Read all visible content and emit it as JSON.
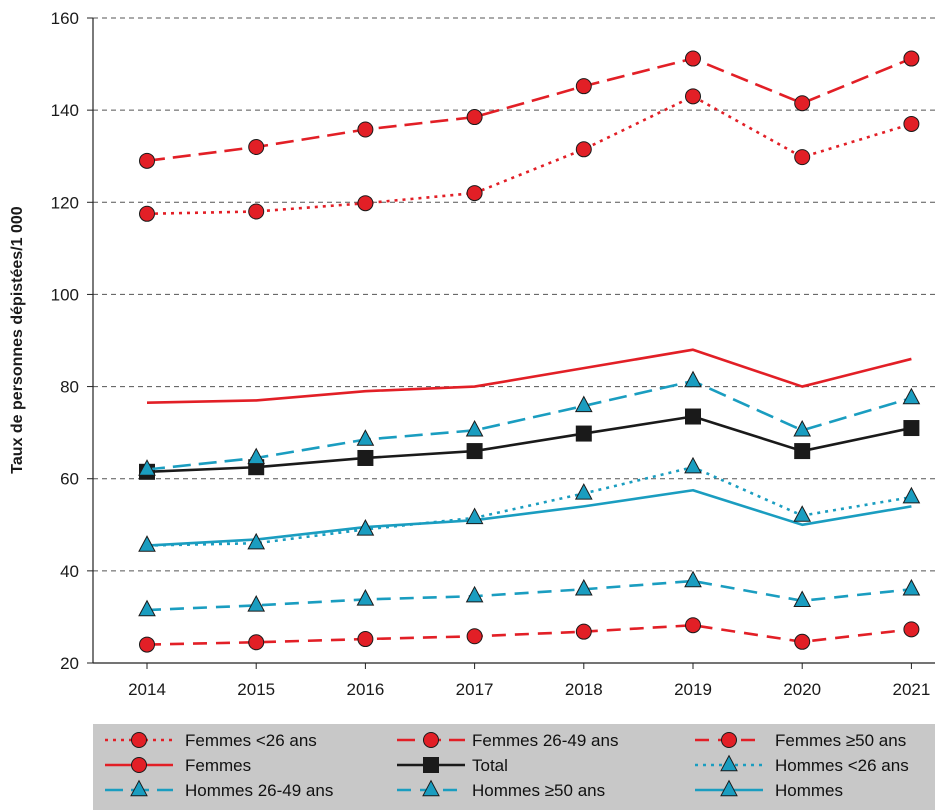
{
  "chart_data": {
    "type": "line",
    "title": "",
    "xlabel": "",
    "ylabel": "Taux de personnes dépistées/1 000",
    "categories": [
      "2014",
      "2015",
      "2016",
      "2017",
      "2018",
      "2019",
      "2020",
      "2021"
    ],
    "ylim": [
      20,
      160
    ],
    "yticks": [
      "20",
      "40",
      "60",
      "80",
      "100",
      "120",
      "140",
      "160"
    ],
    "grid": "horizontal-dashed",
    "legend_position": "bottom",
    "series": [
      {
        "name": "Femmes <26 ans",
        "values": [
          117.5,
          118,
          119.8,
          122,
          131.5,
          143,
          129.8,
          137
        ],
        "color": "#e21f26",
        "dash": "dashdot",
        "marker": "circle",
        "marker_fill": "#e21f26"
      },
      {
        "name": "Femmes 26-49 ans",
        "values": [
          129,
          132,
          135.8,
          138.5,
          145.2,
          151.2,
          141.5,
          151.2
        ],
        "color": "#e21f26",
        "dash": "longdash",
        "marker": "circle",
        "marker_fill": "#e21f26"
      },
      {
        "name": "Femmes ≥50 ans",
        "values": [
          24,
          24.5,
          25.2,
          25.8,
          26.8,
          28.2,
          24.6,
          27.3
        ],
        "color": "#e21f26",
        "dash": "dash",
        "marker": "circle",
        "marker_fill": "#e21f26"
      },
      {
        "name": "Femmes",
        "values": [
          76.5,
          77,
          79,
          80,
          84,
          88,
          80,
          86
        ],
        "color": "#e21f26",
        "dash": "solid",
        "marker": "none",
        "marker_fill": "#e21f26"
      },
      {
        "name": "Total",
        "values": [
          61.5,
          62.5,
          64.5,
          66,
          69.8,
          73.5,
          66,
          71
        ],
        "color": "#1a1a1a",
        "dash": "solid",
        "marker": "square",
        "marker_fill": "#1a1a1a"
      },
      {
        "name": "Hommes <26 ans",
        "values": [
          45.5,
          46,
          49,
          51.5,
          56.8,
          62.5,
          52,
          56
        ],
        "color": "#1a9dc0",
        "dash": "dot",
        "marker": "triangle",
        "marker_fill": "#1a9dc0"
      },
      {
        "name": "Hommes 26-49 ans",
        "values": [
          62,
          64.5,
          68.5,
          70.5,
          75.8,
          81.2,
          70.5,
          77.5
        ],
        "color": "#1a9dc0",
        "dash": "longdash",
        "marker": "triangle",
        "marker_fill": "#1a9dc0"
      },
      {
        "name": "Hommes ≥50 ans",
        "values": [
          31.5,
          32.5,
          33.8,
          34.5,
          36,
          37.8,
          33.5,
          36
        ],
        "color": "#1a9dc0",
        "dash": "dash",
        "marker": "triangle",
        "marker_fill": "#1a9dc0"
      },
      {
        "name": "Hommes",
        "values": [
          45.5,
          46.8,
          49.5,
          51,
          54,
          57.5,
          50,
          54
        ],
        "color": "#1a9dc0",
        "dash": "solid",
        "marker": "none",
        "marker_fill": "#1a9dc0"
      }
    ],
    "legend_order": [
      0,
      1,
      2,
      3,
      4,
      5,
      6,
      7,
      8
    ],
    "legend_entries": [
      {
        "label": "Femmes <26 ans",
        "color": "#e21f26",
        "dash": "dashdot",
        "marker": "circle"
      },
      {
        "label": "Femmes 26-49 ans",
        "color": "#e21f26",
        "dash": "longdash",
        "marker": "circle"
      },
      {
        "label": "Femmes ≥50 ans",
        "color": "#e21f26",
        "dash": "dash",
        "marker": "circle"
      },
      {
        "label": "Femmes",
        "color": "#e21f26",
        "dash": "solid",
        "marker": "circle"
      },
      {
        "label": "Total",
        "color": "#1a1a1a",
        "dash": "solid",
        "marker": "square"
      },
      {
        "label": "Hommes <26 ans",
        "color": "#1a9dc0",
        "dash": "dot",
        "marker": "triangle"
      },
      {
        "label": "Hommes 26-49 ans",
        "color": "#1a9dc0",
        "dash": "longdash",
        "marker": "triangle"
      },
      {
        "label": "Hommes ≥50 ans",
        "color": "#1a9dc0",
        "dash": "dash",
        "marker": "triangle"
      },
      {
        "label": "Hommes",
        "color": "#1a9dc0",
        "dash": "solid",
        "marker": "triangle"
      }
    ],
    "colors": {
      "legend_background": "#c8c8c8",
      "grid": "#555555",
      "axis": "#222222",
      "marker_outline": "#1a1a1a"
    }
  }
}
